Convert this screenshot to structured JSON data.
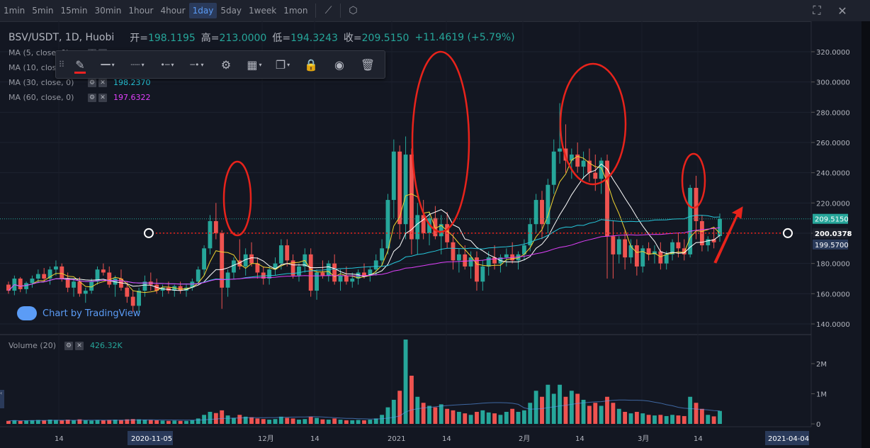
{
  "toolbar": {
    "intervals": [
      "1min",
      "5min",
      "15min",
      "30min",
      "1hour",
      "4hour",
      "1day",
      "5day",
      "1week",
      "1mon"
    ],
    "active_interval": "1day",
    "chart_type_icon": "candle-chart-icon",
    "settings_icon": "hexagon-gear-icon",
    "fullscreen_icon": "expand-icon",
    "close_icon": "close-icon"
  },
  "legend": {
    "symbol": "BSV/USDT, 1D, Huobi",
    "open_label": "开=",
    "open": "198.1195",
    "high_label": "高=",
    "high": "213.0000",
    "low_label": "低=",
    "low": "194.3243",
    "close_label": "收=",
    "close": "209.5150",
    "change": "+11.4619 (+5.79%)",
    "ma": [
      {
        "label": "MA (5, close, 0)",
        "value": "",
        "color": "#f0d432"
      },
      {
        "label": "MA (10, close, 0)",
        "value": "",
        "color": "#ffffff"
      },
      {
        "label": "MA (30, close, 0)",
        "value": "198.2370",
        "color": "#26c6da"
      },
      {
        "label": "MA (60, close, 0)",
        "value": "197.6322",
        "color": "#e040fb"
      }
    ]
  },
  "drawing_toolbar": {
    "tools": [
      "pencil-icon",
      "line-style-icon",
      "dotted-line-icon",
      "dot-line-icon",
      "arrow-line-icon",
      "gear-icon",
      "layers-icon",
      "copy-icon",
      "lock-icon",
      "eye-icon",
      "trash-icon"
    ]
  },
  "watermark": "Chart by TradingView",
  "volume_legend": {
    "label": "Volume (20)",
    "value": "426.32K"
  },
  "colors": {
    "up": "#26a69a",
    "down": "#ef5350",
    "annotation": "#e8231b",
    "bg": "#131722"
  },
  "chart_data": {
    "type": "candlestick",
    "price_axis": {
      "ticks": [
        "140.0000",
        "160.0000",
        "180.0000",
        "200.0000",
        "220.0000",
        "240.0000",
        "260.0000",
        "280.0000",
        "300.0000",
        "320.0000"
      ],
      "ylim": [
        130,
        335
      ]
    },
    "volume_axis": {
      "ticks": [
        "0",
        "1M",
        "2M"
      ],
      "ylim": [
        0,
        2800000
      ]
    },
    "time_axis": {
      "ticks": [
        "14",
        "12月",
        "14",
        "2021",
        "14",
        "2月",
        "14",
        "3月",
        "14"
      ]
    },
    "crosshair_date": "2020-11-05",
    "right_date": "2021-04-04",
    "current_price": "209.5150",
    "horizontal_line_price": "200.0378",
    "horizontal_line_label": "200.0378",
    "lower_price_label": "199.5700",
    "candles": [
      [
        166,
        168,
        160,
        162,
        0.1
      ],
      [
        162,
        172,
        159,
        170,
        0.12
      ],
      [
        170,
        171,
        161,
        163,
        0.1
      ],
      [
        163,
        168,
        160,
        167,
        0.11
      ],
      [
        167,
        172,
        164,
        170,
        0.12
      ],
      [
        170,
        176,
        167,
        173,
        0.13
      ],
      [
        173,
        177,
        168,
        170,
        0.12
      ],
      [
        170,
        178,
        166,
        176,
        0.14
      ],
      [
        176,
        182,
        172,
        178,
        0.13
      ],
      [
        178,
        180,
        168,
        170,
        0.12
      ],
      [
        170,
        174,
        161,
        164,
        0.14
      ],
      [
        164,
        170,
        158,
        168,
        0.12
      ],
      [
        168,
        171,
        158,
        160,
        0.15
      ],
      [
        160,
        164,
        154,
        162,
        0.12
      ],
      [
        162,
        170,
        160,
        168,
        0.11
      ],
      [
        168,
        178,
        166,
        176,
        0.13
      ],
      [
        176,
        180,
        172,
        174,
        0.12
      ],
      [
        174,
        178,
        164,
        166,
        0.13
      ],
      [
        166,
        172,
        158,
        170,
        0.14
      ],
      [
        170,
        176,
        162,
        164,
        0.13
      ],
      [
        164,
        168,
        154,
        158,
        0.15
      ],
      [
        158,
        162,
        148,
        152,
        0.16
      ],
      [
        152,
        164,
        148,
        162,
        0.15
      ],
      [
        162,
        172,
        158,
        168,
        0.14
      ],
      [
        168,
        174,
        162,
        166,
        0.13
      ],
      [
        166,
        170,
        160,
        162,
        0.12
      ],
      [
        162,
        166,
        158,
        164,
        0.11
      ],
      [
        164,
        168,
        160,
        162,
        0.1
      ],
      [
        162,
        166,
        158,
        165,
        0.11
      ],
      [
        165,
        168,
        160,
        162,
        0.1
      ],
      [
        162,
        166,
        158,
        164,
        0.1
      ],
      [
        164,
        170,
        162,
        168,
        0.12
      ],
      [
        168,
        178,
        166,
        176,
        0.18
      ],
      [
        176,
        192,
        172,
        190,
        0.3
      ],
      [
        190,
        212,
        186,
        208,
        0.4
      ],
      [
        208,
        220,
        196,
        200,
        0.36
      ],
      [
        200,
        202,
        150,
        164,
        0.45
      ],
      [
        164,
        176,
        158,
        174,
        0.28
      ],
      [
        174,
        184,
        170,
        182,
        0.2
      ],
      [
        182,
        196,
        176,
        178,
        0.3
      ],
      [
        178,
        190,
        172,
        186,
        0.24
      ],
      [
        186,
        194,
        178,
        180,
        0.22
      ],
      [
        180,
        184,
        170,
        174,
        0.18
      ],
      [
        174,
        178,
        166,
        170,
        0.16
      ],
      [
        170,
        178,
        166,
        176,
        0.14
      ],
      [
        176,
        184,
        172,
        180,
        0.16
      ],
      [
        180,
        196,
        176,
        192,
        0.24
      ],
      [
        192,
        196,
        178,
        182,
        0.2
      ],
      [
        182,
        186,
        170,
        172,
        0.18
      ],
      [
        172,
        180,
        168,
        178,
        0.14
      ],
      [
        178,
        190,
        174,
        186,
        0.16
      ],
      [
        186,
        190,
        158,
        162,
        0.24
      ],
      [
        162,
        176,
        156,
        174,
        0.2
      ],
      [
        174,
        182,
        170,
        172,
        0.15
      ],
      [
        172,
        182,
        168,
        180,
        0.14
      ],
      [
        180,
        186,
        166,
        168,
        0.18
      ],
      [
        168,
        176,
        162,
        172,
        0.14
      ],
      [
        172,
        178,
        166,
        168,
        0.12
      ],
      [
        168,
        174,
        164,
        170,
        0.12
      ],
      [
        170,
        176,
        166,
        174,
        0.13
      ],
      [
        174,
        180,
        170,
        172,
        0.12
      ],
      [
        172,
        178,
        168,
        176,
        0.14
      ],
      [
        176,
        186,
        172,
        182,
        0.18
      ],
      [
        182,
        196,
        178,
        190,
        0.3
      ],
      [
        190,
        226,
        186,
        222,
        0.55
      ],
      [
        222,
        262,
        210,
        254,
        0.8
      ],
      [
        254,
        258,
        196,
        206,
        1.1
      ],
      [
        206,
        264,
        196,
        252,
        2.8
      ],
      [
        252,
        256,
        186,
        196,
        1.6
      ],
      [
        196,
        220,
        186,
        212,
        0.9
      ],
      [
        212,
        222,
        196,
        200,
        0.7
      ],
      [
        200,
        214,
        192,
        210,
        0.6
      ],
      [
        210,
        218,
        196,
        198,
        0.55
      ],
      [
        198,
        212,
        186,
        206,
        0.65
      ],
      [
        206,
        214,
        190,
        194,
        0.5
      ],
      [
        194,
        200,
        176,
        182,
        0.45
      ],
      [
        182,
        190,
        174,
        186,
        0.4
      ],
      [
        186,
        192,
        176,
        178,
        0.35
      ],
      [
        178,
        188,
        170,
        184,
        0.3
      ],
      [
        184,
        188,
        162,
        168,
        0.4
      ],
      [
        168,
        182,
        162,
        178,
        0.45
      ],
      [
        178,
        188,
        172,
        184,
        0.38
      ],
      [
        184,
        192,
        176,
        180,
        0.35
      ],
      [
        180,
        186,
        174,
        184,
        0.3
      ],
      [
        184,
        190,
        178,
        186,
        0.4
      ],
      [
        186,
        194,
        180,
        182,
        0.5
      ],
      [
        182,
        188,
        176,
        186,
        0.4
      ],
      [
        186,
        196,
        182,
        192,
        0.45
      ],
      [
        192,
        210,
        188,
        206,
        0.7
      ],
      [
        206,
        226,
        200,
        222,
        1.1
      ],
      [
        222,
        228,
        196,
        206,
        0.9
      ],
      [
        206,
        236,
        200,
        232,
        1.3
      ],
      [
        232,
        262,
        226,
        254,
        1.0
      ],
      [
        254,
        286,
        246,
        256,
        1.3
      ],
      [
        256,
        272,
        240,
        248,
        0.9
      ],
      [
        248,
        256,
        236,
        252,
        1.1
      ],
      [
        252,
        260,
        240,
        244,
        1.0
      ],
      [
        244,
        254,
        236,
        248,
        0.8
      ],
      [
        248,
        256,
        234,
        240,
        0.6
      ],
      [
        240,
        252,
        228,
        236,
        0.7
      ],
      [
        236,
        250,
        226,
        248,
        0.6
      ],
      [
        248,
        252,
        170,
        198,
        0.9
      ],
      [
        198,
        208,
        170,
        186,
        0.7
      ],
      [
        186,
        198,
        180,
        196,
        0.5
      ],
      [
        196,
        202,
        176,
        184,
        0.4
      ],
      [
        184,
        196,
        180,
        192,
        0.35
      ],
      [
        192,
        196,
        172,
        178,
        0.4
      ],
      [
        178,
        192,
        174,
        190,
        0.35
      ],
      [
        190,
        194,
        182,
        186,
        0.3
      ],
      [
        186,
        192,
        180,
        188,
        0.28
      ],
      [
        188,
        194,
        176,
        180,
        0.3
      ],
      [
        180,
        188,
        176,
        186,
        0.26
      ],
      [
        186,
        196,
        182,
        194,
        0.3
      ],
      [
        194,
        200,
        184,
        190,
        0.28
      ],
      [
        190,
        196,
        182,
        186,
        0.26
      ],
      [
        186,
        232,
        184,
        230,
        0.9
      ],
      [
        230,
        238,
        196,
        208,
        0.7
      ],
      [
        208,
        212,
        188,
        192,
        0.5
      ],
      [
        192,
        198,
        188,
        196,
        0.3
      ],
      [
        196,
        204,
        190,
        194,
        0.25
      ],
      [
        198.12,
        213.0,
        194.32,
        209.52,
        0.43
      ]
    ]
  }
}
